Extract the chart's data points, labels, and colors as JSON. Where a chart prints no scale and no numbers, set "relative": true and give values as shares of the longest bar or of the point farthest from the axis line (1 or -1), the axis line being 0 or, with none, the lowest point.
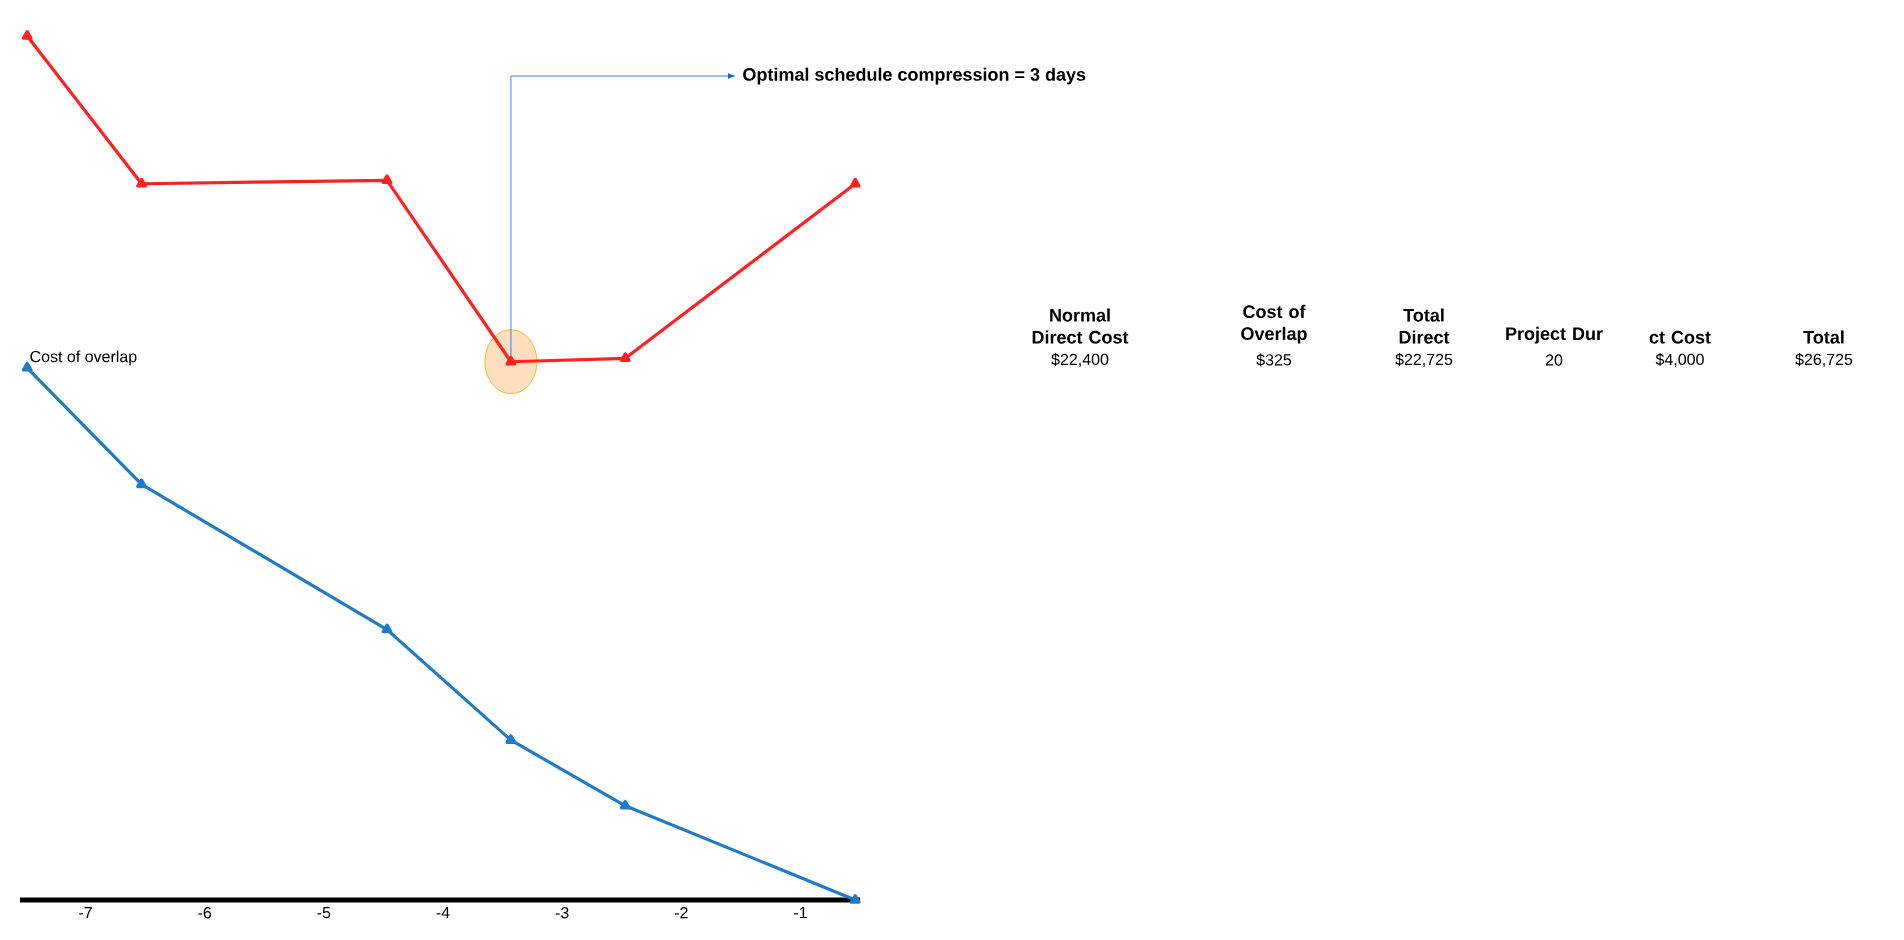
{
  "chart_data": {
    "type": "line",
    "relative": true,
    "marker": "triangle",
    "legend": false,
    "x": [
      -7.49,
      -6.53,
      -4.47,
      -3.43,
      -2.47,
      -0.54
    ],
    "xlim": [
      -7.55,
      -0.5
    ],
    "xticks": [
      -7,
      -6,
      -5,
      -4,
      -3,
      -2,
      -1
    ],
    "series": [
      {
        "color": "#ff2020",
        "values": [
          1,
          0.829,
          0.833,
          0.623,
          0.627,
          0.829
        ]
      },
      {
        "name": "Cost of overlap",
        "color": "#1f7bc8",
        "values": [
          0.616,
          0.481,
          0.313,
          0.185,
          0.109,
          0
        ]
      }
    ],
    "annotations": [
      {
        "text": "Optimal schedule compression = 3 days",
        "x": -3.43,
        "y": 0.623
      },
      "Normal Direct Cost",
      "Cost of Overlap",
      "Total Direct",
      "Project Dur",
      "ct Cost",
      "Total",
      "$22,400",
      "$325",
      "$22,725",
      "20",
      "$4,000",
      "$26,725"
    ]
  }
}
